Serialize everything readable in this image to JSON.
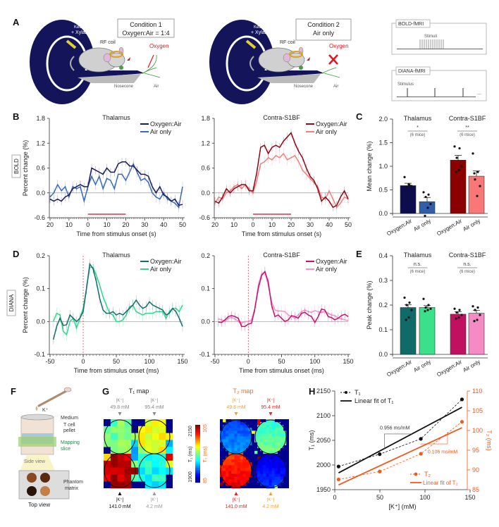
{
  "panel_labels": {
    "A": "A",
    "B": "B",
    "C": "C",
    "D": "D",
    "E": "E",
    "F": "F",
    "G": "G",
    "H": "H"
  },
  "row_labels": {
    "bold": "BOLD",
    "diana": "DIANA"
  },
  "panel_a": {
    "condition1": {
      "title": "Condition 1",
      "subtitle": "Oxygen:Air = 1:4"
    },
    "condition2": {
      "title": "Condition 2",
      "subtitle": "Air only"
    },
    "anesthesia": [
      "Ketamine",
      "+ Xylazine"
    ],
    "rf_coil": "RF coil",
    "oxygen": "Oxygen",
    "nosecone": "Nosecone",
    "air": "Air",
    "bold_box": {
      "title": "BOLD-fMRI",
      "label": "Stimuli"
    },
    "diana_box": {
      "title": "DIANA-fMRI",
      "label": "Stimulus",
      "more": "..."
    },
    "colors": {
      "ring": "#14145a",
      "oxygen": "#e8141c",
      "coil": "#e0a020"
    }
  },
  "chart_data": [
    {
      "type": "line",
      "panel": "B",
      "title": "Thalamus",
      "xlabel": "Time from stimulus onset (s)",
      "ylabel": "Percent change (%)",
      "xlim": [
        -20,
        50
      ],
      "ylim": [
        -0.6,
        1.8
      ],
      "xticks": [
        -20,
        -10,
        0,
        10,
        20,
        30,
        40,
        50
      ],
      "xtick_labels": [
        "20",
        "10",
        "0",
        "10",
        "20",
        "30",
        "40",
        "50"
      ],
      "yticks": [
        -0.6,
        0,
        0.6,
        1.2,
        1.8
      ],
      "ytick_labels": [
        "-0.6",
        "0.0",
        "0.6",
        "1.2",
        "1.8"
      ],
      "legend": "top-right",
      "stimulus_window": [
        0,
        20
      ],
      "x": [
        -20,
        -18,
        -16,
        -14,
        -12,
        -10,
        -8,
        -6,
        -4,
        -2,
        0,
        2,
        4,
        6,
        8,
        10,
        12,
        14,
        16,
        18,
        20,
        22,
        24,
        26,
        28,
        30,
        32,
        34,
        36,
        38,
        40,
        42,
        44,
        46,
        48,
        50
      ],
      "series": [
        {
          "name": "Oxygen:Air",
          "color": "#1b1b5c",
          "se": 0.1,
          "y": [
            -0.15,
            -0.2,
            -0.15,
            -0.2,
            -0.1,
            -0.05,
            0.1,
            0.15,
            0.2,
            0.15,
            0.15,
            0.6,
            0.55,
            0.5,
            0.45,
            0.6,
            0.5,
            0.5,
            0.7,
            0.75,
            0.75,
            0.65,
            0.65,
            0.55,
            0.45,
            0.45,
            0.4,
            0.15,
            0.0,
            0.15,
            -0.05,
            -0.1,
            -0.2,
            -0.15,
            -0.3,
            -0.28
          ]
        },
        {
          "name": "Air only",
          "color": "#3a6ab8",
          "se": 0.12,
          "y": [
            -0.1,
            0.0,
            0.2,
            0.05,
            0.15,
            -0.1,
            0.15,
            0.1,
            0.15,
            -0.2,
            0.15,
            0.4,
            0.2,
            0.4,
            0.1,
            0.35,
            0.3,
            0.1,
            0.45,
            0.45,
            0.3,
            0.5,
            0.7,
            0.5,
            0.3,
            0.35,
            0.25,
            0.0,
            -0.1,
            -0.15,
            0.0,
            -0.15,
            -0.2,
            -0.25,
            -0.35,
            0.15
          ]
        }
      ]
    },
    {
      "type": "line",
      "panel": "B",
      "title": "Contra-S1BF",
      "xlabel": "Time from stimulus onset (s)",
      "ylabel": "",
      "xlim": [
        -20,
        50
      ],
      "ylim": [
        -0.6,
        1.8
      ],
      "xticks": [
        -20,
        -10,
        0,
        10,
        20,
        30,
        40,
        50
      ],
      "xtick_labels": [
        "20",
        "10",
        "0",
        "10",
        "20",
        "30",
        "40",
        "50"
      ],
      "yticks": [
        -0.6,
        0,
        0.6,
        1.2,
        1.8
      ],
      "ytick_labels": [
        "-0.6",
        "0.0",
        "0.6",
        "1.2",
        "1.8"
      ],
      "legend": "top-right",
      "stimulus_window": [
        0,
        20
      ],
      "x": [
        -20,
        -18,
        -16,
        -14,
        -12,
        -10,
        -8,
        -6,
        -4,
        -2,
        0,
        2,
        4,
        6,
        8,
        10,
        12,
        14,
        16,
        18,
        20,
        22,
        24,
        26,
        28,
        30,
        32,
        34,
        36,
        38,
        40,
        42,
        44,
        46,
        48,
        50
      ],
      "series": [
        {
          "name": "Oxygen:Air",
          "color": "#8b0a1a",
          "se": 0.1,
          "y": [
            -0.2,
            -0.25,
            -0.1,
            0.1,
            0.0,
            0.1,
            0.15,
            0.2,
            0.2,
            0.05,
            0.05,
            0.5,
            1.1,
            1.15,
            0.95,
            1.1,
            1.15,
            1.1,
            1.25,
            1.35,
            1.45,
            1.2,
            1.0,
            0.85,
            0.6,
            0.4,
            0.3,
            0.1,
            -0.2,
            -0.1,
            -0.2,
            -0.35,
            -0.3,
            -0.1,
            0.05,
            -0.15
          ]
        },
        {
          "name": "Air only",
          "color": "#f08080",
          "se": 0.14,
          "y": [
            -0.25,
            -0.1,
            -0.15,
            0.0,
            0.05,
            0.15,
            0.2,
            0.1,
            0.2,
            0.1,
            0.0,
            0.3,
            0.7,
            0.75,
            0.85,
            0.8,
            0.9,
            0.85,
            0.95,
            0.8,
            0.85,
            0.9,
            0.75,
            0.55,
            0.45,
            0.35,
            0.25,
            0.15,
            -0.1,
            -0.15,
            0.05,
            -0.15,
            -0.35,
            -0.25,
            -0.1,
            -0.15
          ]
        }
      ]
    },
    {
      "type": "bar",
      "panel": "C",
      "ylabel": "Mean change (%)",
      "ylim": [
        0,
        2.0
      ],
      "yticks": [
        0,
        0.5,
        1.0,
        1.5,
        2.0
      ],
      "ytick_labels": [
        "0.0",
        "0.5",
        "1.0",
        "1.5",
        "2.0"
      ],
      "groups": [
        {
          "title": "Thalamus",
          "significance": "*",
          "note": "(6 mice)"
        },
        {
          "title": "Contra-S1BF",
          "significance": "**",
          "note": "(6 mice)"
        }
      ],
      "categories": [
        "Oxygen:Air",
        "Air only",
        "Oxygen:Air",
        "Air only"
      ],
      "values": [
        0.59,
        0.25,
        1.13,
        0.79
      ],
      "errors": [
        0.05,
        0.09,
        0.1,
        0.11
      ],
      "colors": [
        "#0d0d4d",
        "#2f5faa",
        "#8b0000",
        "#f87878"
      ],
      "points": [
        [
          0.77,
          0.6,
          0.55,
          0.58,
          0.62,
          0.56
        ],
        [
          0.45,
          0.4,
          0.35,
          0.2,
          0.12,
          -0.05
        ],
        [
          1.42,
          1.38,
          1.18,
          1.0,
          0.92,
          0.88
        ],
        [
          1.27,
          0.88,
          0.72,
          0.58,
          0.37,
          0.85
        ]
      ]
    },
    {
      "type": "line",
      "panel": "D",
      "title": "Thalamus",
      "xlabel": "Time from stimulus onset (ms)",
      "ylabel": "Percent change (%)",
      "xlim": [
        -50,
        150
      ],
      "ylim": [
        -0.1,
        0.2
      ],
      "xticks": [
        -50,
        0,
        50,
        100,
        150
      ],
      "xtick_labels": [
        "-50",
        "0",
        "50",
        "100",
        "150"
      ],
      "yticks": [
        -0.1,
        0,
        0.1,
        0.2
      ],
      "ytick_labels": [
        "-0.1",
        "0.0",
        "0.1",
        "0.2"
      ],
      "legend": "top-right",
      "stimulus_onset": 0,
      "x": [
        -45,
        -40,
        -35,
        -30,
        -25,
        -20,
        -15,
        -10,
        -5,
        0,
        5,
        10,
        15,
        20,
        25,
        30,
        35,
        40,
        45,
        50,
        55,
        60,
        65,
        70,
        75,
        80,
        85,
        90,
        95,
        100,
        105,
        110,
        115,
        120,
        125,
        130,
        135,
        140,
        145,
        150
      ],
      "series": [
        {
          "name": "Oxygen:Air",
          "color": "#1a6b6b",
          "se": 0.015,
          "y": [
            -0.055,
            -0.015,
            0.01,
            -0.012,
            -0.01,
            0.02,
            0.01,
            0.0,
            0.01,
            0.03,
            0.1,
            0.175,
            0.16,
            0.12,
            0.07,
            0.035,
            0.025,
            0.025,
            0.03,
            0.02,
            0.025,
            0.02,
            0.03,
            0.04,
            0.05,
            0.065,
            0.05,
            0.04,
            0.045,
            0.06,
            0.05,
            0.045,
            0.04,
            0.035,
            0.02,
            0.025,
            0.04,
            0.03,
            0.01,
            -0.015
          ]
        },
        {
          "name": "Air only",
          "color": "#33d68a",
          "se": 0.018,
          "y": [
            0.0,
            0.025,
            0.02,
            -0.03,
            -0.04,
            0.0,
            0.01,
            -0.02,
            0.01,
            0.04,
            0.1,
            0.165,
            0.165,
            0.14,
            0.11,
            0.075,
            0.05,
            0.025,
            0.02,
            0.0,
            0.0,
            0.005,
            0.02,
            0.045,
            0.05,
            0.03,
            0.025,
            0.02,
            0.025,
            0.025,
            0.025,
            0.03,
            0.03,
            0.03,
            0.01,
            0.03,
            0.04,
            0.04,
            0.03,
            0.05
          ]
        }
      ]
    },
    {
      "type": "line",
      "panel": "D",
      "title": "Contra-S1BF",
      "xlabel": "Time from stimulus onset (ms)",
      "ylabel": "",
      "xlim": [
        -50,
        150
      ],
      "ylim": [
        -0.1,
        0.2
      ],
      "xticks": [
        -50,
        0,
        50,
        100,
        150
      ],
      "xtick_labels": [
        "-50",
        "0",
        "50",
        "100",
        "150"
      ],
      "yticks": [
        -0.1,
        0,
        0.1,
        0.2
      ],
      "ytick_labels": [
        "-0.1",
        "0.0",
        "0.1",
        "0.2"
      ],
      "legend": "top-right",
      "stimulus_onset": 0,
      "x": [
        -45,
        -40,
        -35,
        -30,
        -25,
        -20,
        -15,
        -10,
        -5,
        0,
        5,
        10,
        15,
        20,
        25,
        30,
        35,
        40,
        45,
        50,
        55,
        60,
        65,
        70,
        75,
        80,
        85,
        90,
        95,
        100,
        105,
        110,
        115,
        120,
        125,
        130,
        135,
        140,
        145,
        150
      ],
      "series": [
        {
          "name": "Oxygen:Air",
          "color": "#c8106e",
          "se": 0.014,
          "y": [
            -0.002,
            -0.003,
            0.005,
            0.015,
            0.018,
            0.015,
            0.01,
            -0.015,
            -0.015,
            -0.008,
            -0.005,
            0.04,
            0.1,
            0.14,
            0.152,
            0.12,
            0.05,
            0.015,
            0.02,
            0.01,
            0.0,
            0.005,
            0.018,
            0.015,
            0.01,
            0.025,
            0.028,
            0.02,
            0.015,
            -0.003,
            0.015,
            0.038,
            0.035,
            0.015,
            0.012,
            0.005,
            0.01,
            0.018,
            0.022,
            0.015
          ]
        },
        {
          "name": "Air only",
          "color": "#f490c8",
          "se": 0.016,
          "y": [
            0.008,
            0.005,
            0.0,
            0.01,
            0.012,
            0.008,
            0.0,
            -0.005,
            0.0,
            0.0,
            0.005,
            0.04,
            0.11,
            0.145,
            0.15,
            0.11,
            0.06,
            0.035,
            0.032,
            0.032,
            0.03,
            0.02,
            0.015,
            0.01,
            0.02,
            0.03,
            0.035,
            0.03,
            0.028,
            0.033,
            0.03,
            0.028,
            0.03,
            0.025,
            0.02,
            0.018,
            0.01,
            0.008,
            0.005,
            0.003
          ]
        }
      ]
    },
    {
      "type": "bar",
      "panel": "E",
      "ylabel": "Peak change (%)",
      "ylim": [
        0,
        0.4
      ],
      "yticks": [
        0,
        0.1,
        0.2,
        0.3,
        0.4
      ],
      "ytick_labels": [
        "0.0",
        "0.1",
        "0.2",
        "0.3",
        "0.4"
      ],
      "groups": [
        {
          "title": "Thalamus",
          "significance": "n.s.",
          "note": "(6 mice)"
        },
        {
          "title": "Contra-S1BF",
          "significance": "n.s.",
          "note": "(6 mice)"
        }
      ],
      "categories": [
        "Oxygen:Air",
        "Air only",
        "Oxygen:Air",
        "Air only"
      ],
      "values": [
        0.19,
        0.19,
        0.163,
        0.167
      ],
      "errors": [
        0.012,
        0.008,
        0.01,
        0.012
      ],
      "colors": [
        "#0e6b68",
        "#3be08a",
        "#c0105f",
        "#f58ac4"
      ],
      "points": [
        [
          0.23,
          0.21,
          0.2,
          0.18,
          0.15,
          0.14
        ],
        [
          0.225,
          0.2,
          0.19,
          0.185,
          0.18,
          0.175
        ],
        [
          0.185,
          0.18,
          0.17,
          0.16,
          0.15,
          0.145
        ],
        [
          0.195,
          0.19,
          0.18,
          0.16,
          0.14,
          0.135
        ]
      ]
    },
    {
      "type": "scatter",
      "panel": "H",
      "xlabel": "[K⁺] (mM)",
      "ylabel": "T₁ (ms)",
      "ylabel_right": "T₂ (ms)",
      "xlim": [
        0,
        150
      ],
      "ylim": [
        1950,
        2150
      ],
      "ylim_right": [
        85,
        110
      ],
      "xticks": [
        0,
        50,
        100,
        150
      ],
      "xtick_labels": [
        "0",
        "50",
        "100",
        "150"
      ],
      "yticks": [
        1950,
        2000,
        2050,
        2100,
        2150
      ],
      "ytick_labels": [
        "1950",
        "2000",
        "2050",
        "2100",
        "2150"
      ],
      "yticks_right": [
        85,
        90,
        95,
        100,
        105,
        110
      ],
      "ytick_labels_right": [
        "85",
        "90",
        "95",
        "100",
        "105",
        "110"
      ],
      "x": [
        4.2,
        49.8,
        95.4,
        141.0
      ],
      "series": [
        {
          "name": "T₁",
          "axis": "left",
          "color": "#111111",
          "y": [
            1997,
            2022,
            2053,
            2133
          ],
          "fit": [
            1984,
            2117
          ]
        },
        {
          "name": "T₂",
          "axis": "right",
          "color": "#f05a1e",
          "y": [
            87.6,
            89.6,
            94.1,
            102.2
          ],
          "fit": [
            86.2,
            100.7
          ]
        }
      ],
      "fit_names": [
        "Linear fit of T₁",
        "Linear fit of T₂"
      ],
      "slope_labels": [
        "0.956 ms/mM",
        "0.106 ms/mM"
      ],
      "legend": [
        "top-left",
        "bottom-right"
      ]
    }
  ],
  "panel_f": {
    "ion": "K⁺",
    "medium": "Medium",
    "pellet": [
      "T cell",
      "pellet"
    ],
    "slice": [
      "Mapping",
      "slice"
    ],
    "side_view": "Side view",
    "phantom": [
      "Phantom",
      "matrix"
    ],
    "top_view": "Top view",
    "well_colors": [
      "#8a4a20",
      "#5a2a10",
      "#2a1408",
      "#c08048"
    ]
  },
  "panel_g": {
    "t1_title": "T₁ map",
    "t2_title": "T₂ map",
    "wells": [
      {
        "ion": "[K⁺]",
        "conc": "49.8 mM",
        "t1": 2022,
        "t2": 89.6
      },
      {
        "ion": "[K⁺]",
        "conc": "95.4 mM",
        "t1": 2053,
        "t2": 94.1
      },
      {
        "ion": "[K⁺]",
        "conc": "141.0 mM",
        "t1": 2133,
        "t2": 102.2
      },
      {
        "ion": "[K⁺]",
        "conc": "4.2 mM",
        "t1": 1997,
        "t2": 87.6
      }
    ],
    "colorbar": {
      "t1_label": "T₁ (ms)",
      "t2_label": "T₂ (ms)",
      "t1_min": "1900",
      "t1_max": "2150",
      "t2_min": "85",
      "t2_max": "105",
      "t1_range": [
        1900,
        2150
      ],
      "t2_range": [
        85,
        105
      ],
      "colormap": "jet"
    },
    "colors": {
      "t2_text": "#f07030",
      "t1_low_text": "#999999",
      "t2_low_text": "#f0a030",
      "t2_high_text": "#e82020"
    }
  }
}
